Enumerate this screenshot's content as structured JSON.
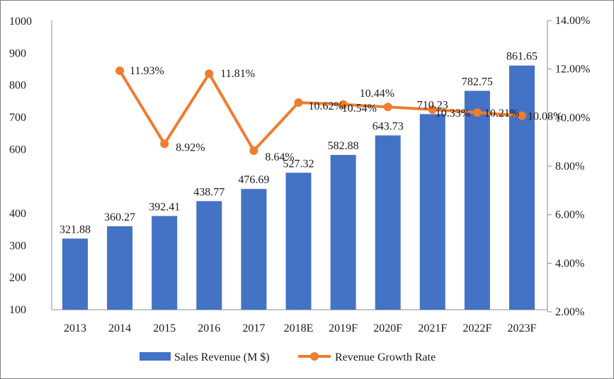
{
  "chart_data": {
    "type": "bar",
    "categories": [
      "2013",
      "2014",
      "2015",
      "2016",
      "2017",
      "2018E",
      "2019F",
      "2020F",
      "2021F",
      "2022F",
      "2023F"
    ],
    "series": [
      {
        "name": "Sales Revenue (M $)",
        "type": "bar",
        "axis": "left",
        "color": "#4472c4",
        "values": [
          321.88,
          360.27,
          392.41,
          438.77,
          476.69,
          527.32,
          582.88,
          643.73,
          710.23,
          782.75,
          861.65
        ],
        "labels": [
          "321.88",
          "360.27",
          "392.41",
          "438.77",
          "476.69",
          "527.32",
          "582.88",
          "643.73",
          "710.23",
          "782.75",
          "861.65"
        ]
      },
      {
        "name": "Revenue Growth Rate",
        "type": "line",
        "axis": "right",
        "color": "#ed7d31",
        "values": [
          null,
          11.93,
          8.92,
          11.81,
          8.64,
          10.62,
          10.54,
          10.44,
          10.33,
          10.21,
          10.08
        ],
        "labels": [
          "",
          "11.93%",
          "8.92%",
          "11.81%",
          "8.64%",
          "10.62%",
          "10.54%",
          "10.44%",
          "10.33%",
          "10.21%",
          "10.08%"
        ]
      }
    ],
    "y_left": {
      "ticks": [
        100,
        200,
        300,
        400,
        500,
        600,
        700,
        800,
        900,
        1000
      ],
      "tick_labels": [
        "100",
        "200",
        "300",
        "400",
        "",
        "600",
        "700",
        "800",
        "900",
        "1000"
      ]
    },
    "y_right": {
      "ticks": [
        2,
        4,
        6,
        8,
        10,
        12,
        14
      ],
      "tick_labels": [
        "2.00%",
        "4.00%",
        "6.00%",
        "8.00%",
        "10.00%",
        "12.00%",
        "14.00%"
      ]
    },
    "grid": false,
    "legend": "bottom"
  }
}
